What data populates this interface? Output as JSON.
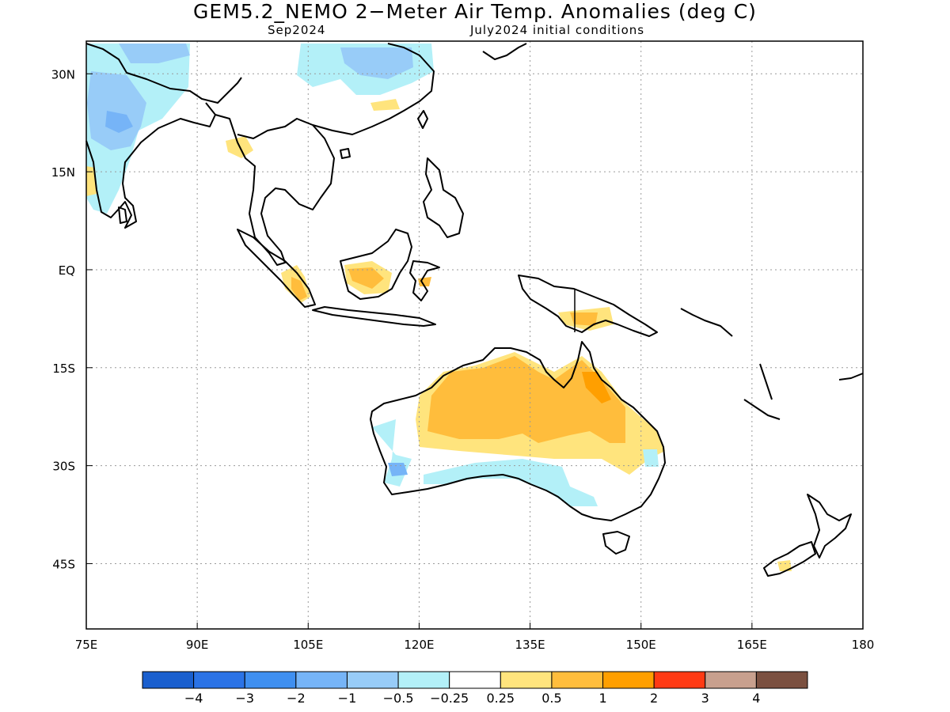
{
  "title": "GEM5.2_NEMO 2−Meter Air Temp. Anomalies (deg C)",
  "subtitle_left": "Sep2024",
  "subtitle_right": "July2024 initial conditions",
  "lat_labels": [
    "30N",
    "15N",
    "EQ",
    "15S",
    "30S",
    "45S"
  ],
  "lat_values": [
    30,
    15,
    0,
    -15,
    -30,
    -45
  ],
  "lon_labels": [
    "75E",
    "90E",
    "105E",
    "120E",
    "135E",
    "150E",
    "165E",
    "180"
  ],
  "lon_values": [
    75,
    90,
    105,
    120,
    135,
    150,
    165,
    180
  ],
  "extent": {
    "lon_min": 75,
    "lon_max": 180,
    "lat_min": -55,
    "lat_max": 35
  },
  "colorbar": {
    "colors": [
      "#1a5fce",
      "#2b73e6",
      "#3f8ff0",
      "#76b4f7",
      "#98ccf8",
      "#b3f0f8",
      "#ffffff",
      "#ffe47d",
      "#ffbd3c",
      "#ff9f00",
      "#ff3a14",
      "#c8a08e",
      "#7b5040"
    ],
    "labels": [
      "−4",
      "−3",
      "−2",
      "−1",
      "−0.5",
      "−0.25",
      "0.25",
      "0.5",
      "1",
      "2",
      "3",
      "4"
    ]
  }
}
